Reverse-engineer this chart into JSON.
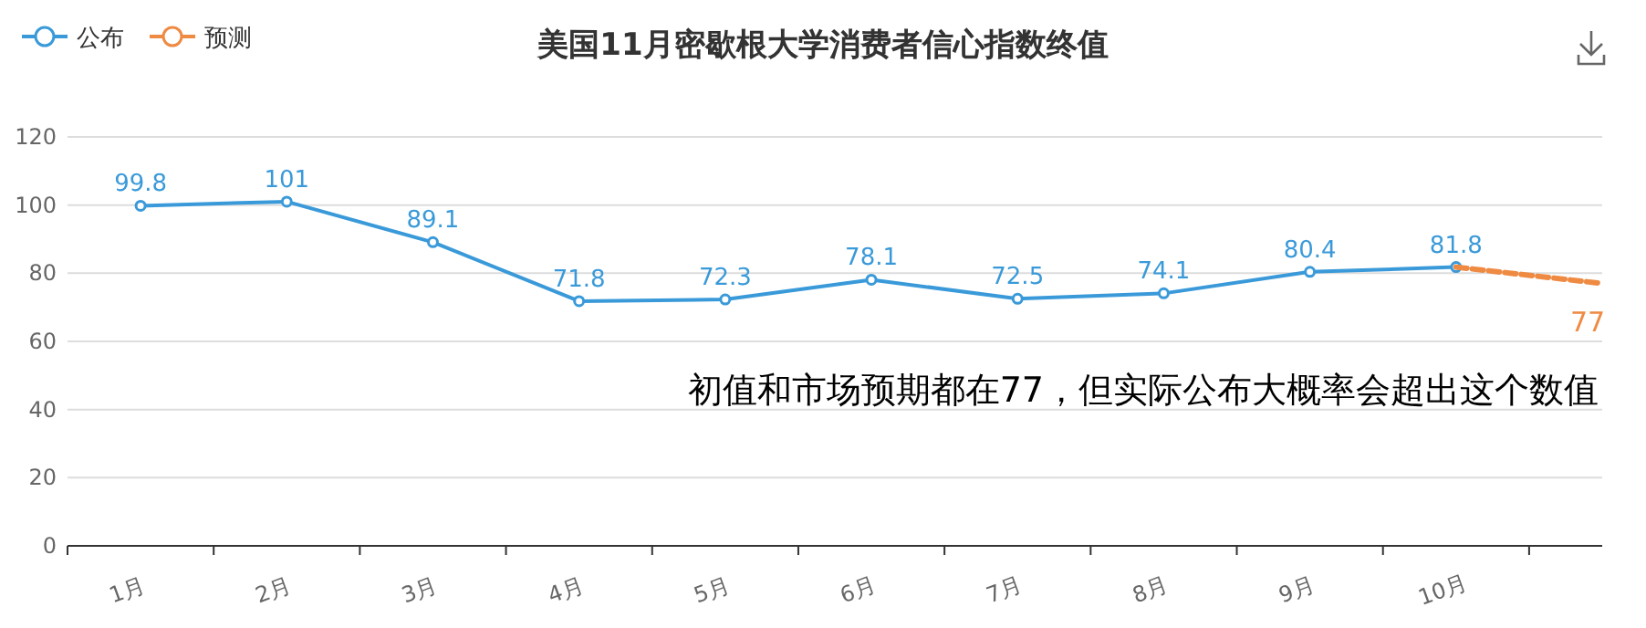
{
  "chart_data": {
    "type": "line",
    "title": "美国11月密歇根大学消费者信心指数终值",
    "categories": [
      "1月",
      "2月",
      "3月",
      "4月",
      "5月",
      "6月",
      "7月",
      "8月",
      "9月",
      "10月",
      null
    ],
    "series": [
      {
        "name": "公布",
        "color": "#3a9ad9",
        "values": [
          99.8,
          101,
          89.1,
          71.8,
          72.3,
          78.1,
          72.5,
          74.1,
          80.4,
          81.8,
          null
        ],
        "marker": "circle",
        "line_style": "solid"
      },
      {
        "name": "预测",
        "color": "#ef8a43",
        "values": [
          null,
          null,
          null,
          null,
          null,
          null,
          null,
          null,
          null,
          81.8,
          77
        ],
        "marker": "none",
        "line_style": "dashed",
        "value_labels": [
          null,
          null,
          null,
          null,
          null,
          null,
          null,
          null,
          null,
          null,
          "77"
        ]
      }
    ],
    "ylim": [
      0,
      120
    ],
    "yticks": [
      0,
      20,
      40,
      60,
      80,
      100,
      120
    ],
    "grid": "y",
    "legend": "top left",
    "data_labels": true,
    "annotations": [
      "初值和市场预期都在77，但实际公布大概率会超出这个数值"
    ]
  }
}
